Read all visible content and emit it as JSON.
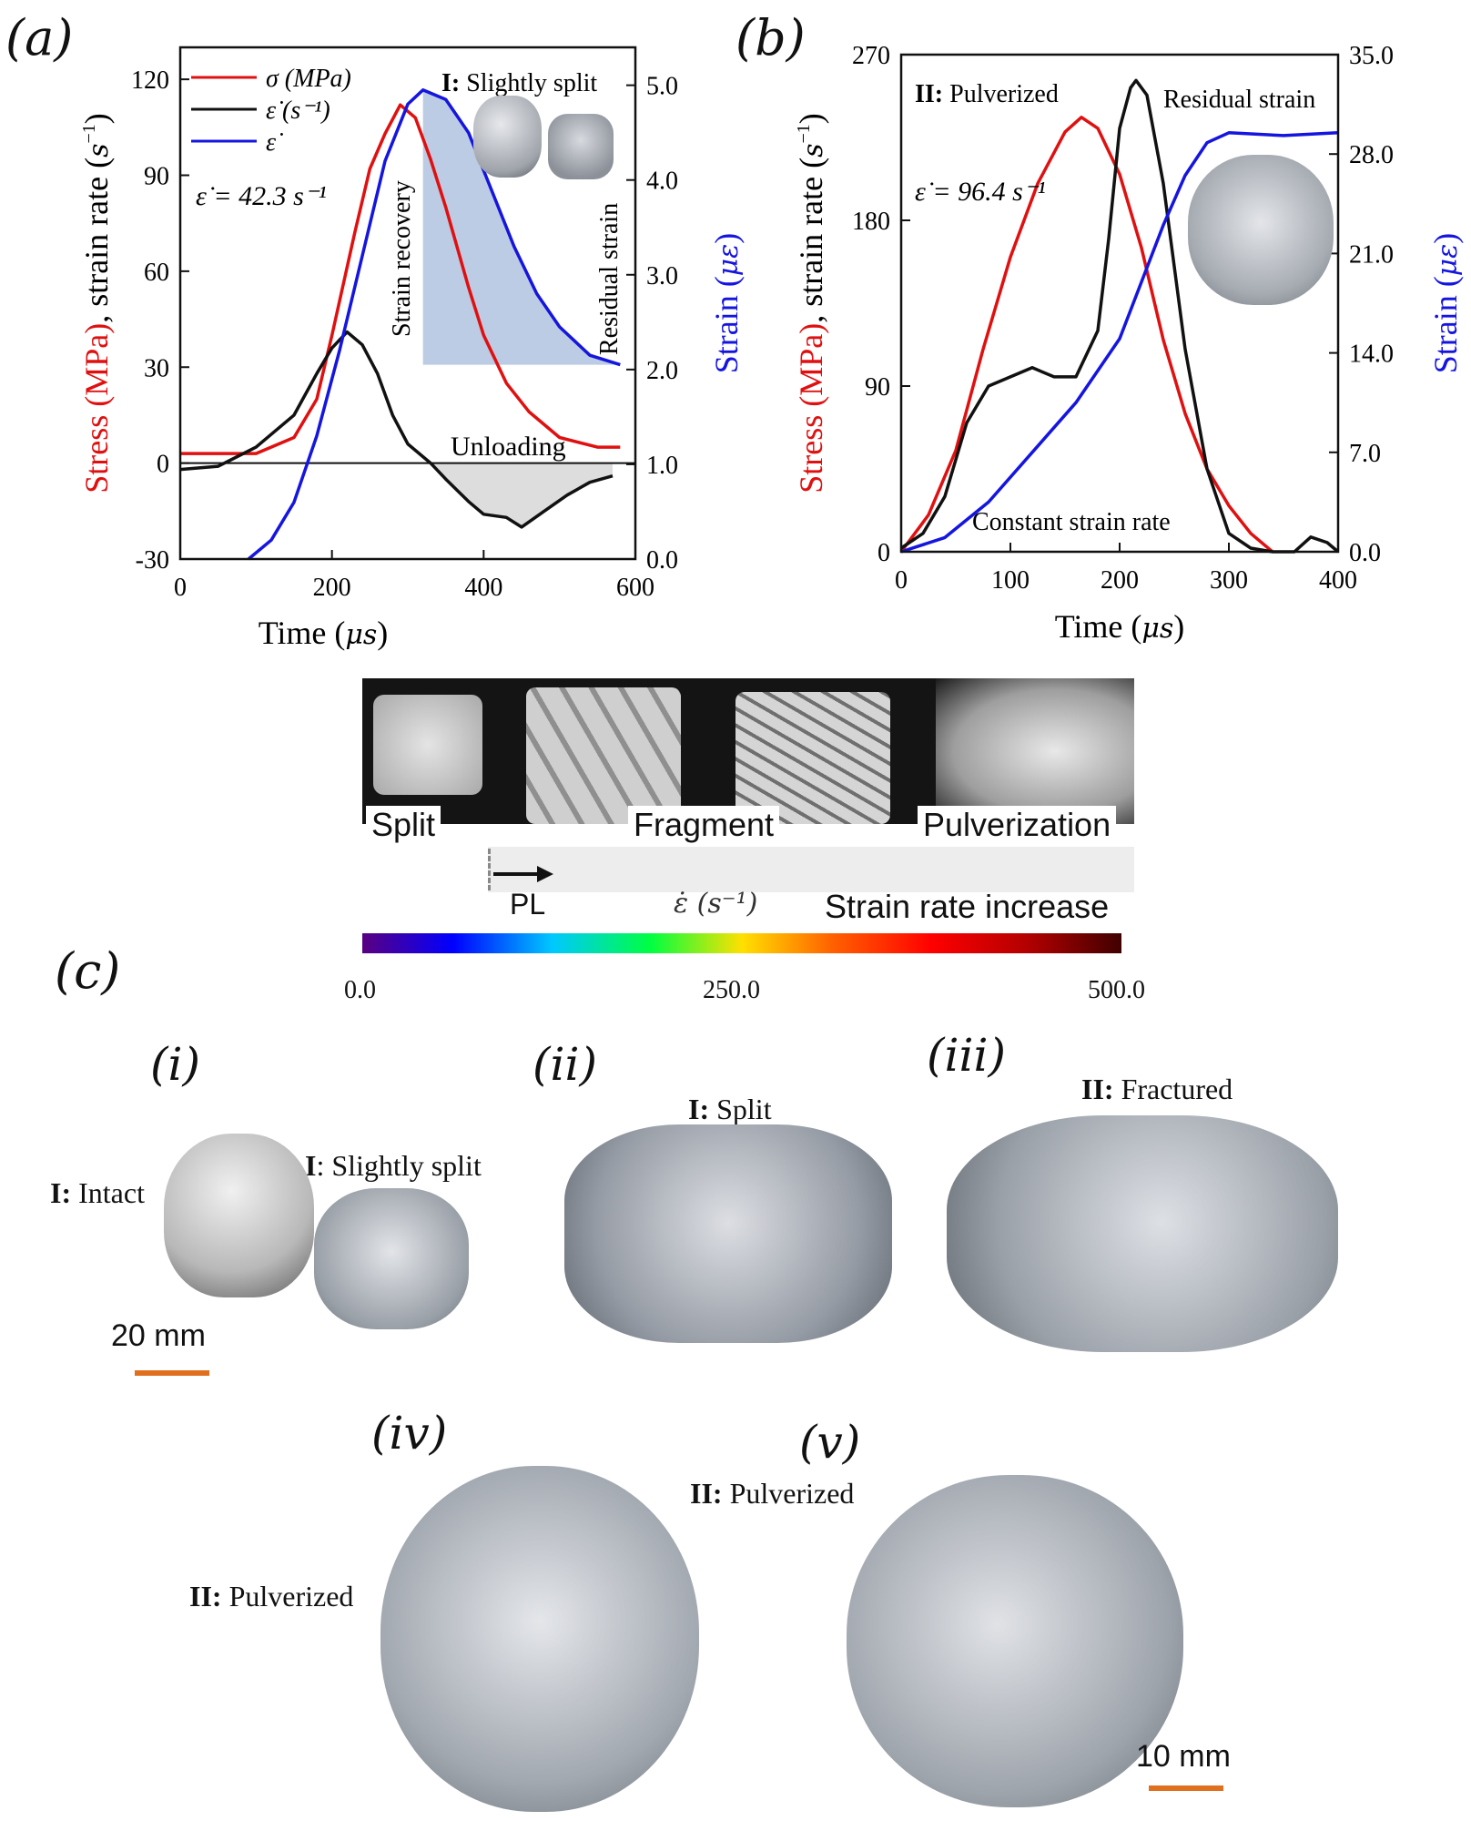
{
  "panel_a": {
    "label": "(a)",
    "legend": [
      {
        "text": "σ  (MPa)",
        "color": "#e01010"
      },
      {
        "text": "ε̇  (s⁻¹)",
        "color": "#111111"
      },
      {
        "text": "ε̇",
        "color": "#1515e0"
      }
    ],
    "annotation_rate": "ε̇ = 42.3  s⁻¹",
    "annotation_state_prefix": "I:",
    "annotation_state": "Slightly  split",
    "annotation_recovery": "Strain recovery",
    "annotation_residual": "Residual strain",
    "annotation_unloading": "Unloading"
  },
  "panel_b": {
    "label": "(b)",
    "annotation_state_prefix": "II:",
    "annotation_state": "Pulverized",
    "annotation_rate": "ε̇ = 96.4  s⁻¹",
    "annotation_residual": "Residual strain",
    "annotation_constant": "Constant strain rate"
  },
  "chart_data": [
    {
      "type": "line",
      "xlabel": "Time (μs)",
      "ylabel_left": "Stress (MPa), strain rate (s⁻¹)",
      "ylabel_right": "Strain (με)",
      "xlim": [
        0,
        600
      ],
      "ylim_left": [
        -30,
        130
      ],
      "ylim_right": [
        0,
        5.4
      ],
      "x_ticks": [
        "0",
        "200",
        "400",
        "600"
      ],
      "y_ticks_left": [
        "-30",
        "0",
        "30",
        "60",
        "90",
        "120"
      ],
      "y_ticks_right": [
        "0.0",
        "1.0",
        "2.0",
        "3.0",
        "4.0",
        "5.0"
      ],
      "series": [
        {
          "name": "σ (MPa)",
          "axis": "left",
          "color": "#e01010",
          "x": [
            0,
            50,
            100,
            150,
            180,
            200,
            230,
            250,
            270,
            290,
            310,
            330,
            350,
            380,
            400,
            430,
            460,
            500,
            550,
            580
          ],
          "y": [
            3,
            3,
            3,
            8,
            20,
            40,
            72,
            92,
            103,
            112,
            108,
            95,
            80,
            55,
            40,
            25,
            16,
            8,
            5,
            5
          ]
        },
        {
          "name": "ε̇ (s⁻¹)",
          "axis": "left",
          "color": "#111111",
          "x": [
            0,
            50,
            100,
            150,
            180,
            200,
            220,
            240,
            260,
            280,
            300,
            330,
            350,
            380,
            400,
            430,
            450,
            480,
            510,
            540,
            570
          ],
          "y": [
            -2,
            -1,
            5,
            15,
            28,
            36,
            41,
            37,
            28,
            15,
            6,
            0,
            -5,
            -12,
            -16,
            -17,
            -20,
            -15,
            -10,
            -6,
            -4
          ]
        },
        {
          "name": "ε̇",
          "axis": "right",
          "color": "#1515e0",
          "x": [
            90,
            120,
            150,
            180,
            210,
            240,
            270,
            300,
            320,
            350,
            380,
            410,
            440,
            470,
            500,
            540,
            580
          ],
          "y": [
            0,
            0.2,
            0.6,
            1.3,
            2.2,
            3.2,
            4.2,
            4.8,
            4.95,
            4.85,
            4.5,
            3.9,
            3.3,
            2.8,
            2.45,
            2.15,
            2.05
          ]
        }
      ]
    },
    {
      "type": "line",
      "xlabel": "Time (μs)",
      "ylabel_left": "Stress (MPa), strain rate (s⁻¹)",
      "ylabel_right": "Strain (με)",
      "xlim": [
        0,
        400
      ],
      "ylim_left": [
        0,
        270
      ],
      "ylim_right": [
        0,
        35
      ],
      "x_ticks": [
        "0",
        "100",
        "200",
        "300",
        "400"
      ],
      "y_ticks_left": [
        "0",
        "90",
        "180",
        "270"
      ],
      "y_ticks_right": [
        "0.0",
        "7.0",
        "14.0",
        "21.0",
        "28.0",
        "35.0"
      ],
      "series": [
        {
          "name": "Stress",
          "axis": "left",
          "color": "#e01010",
          "x": [
            0,
            25,
            50,
            75,
            100,
            125,
            150,
            165,
            180,
            200,
            220,
            240,
            260,
            280,
            300,
            320,
            340
          ],
          "y": [
            0,
            20,
            55,
            110,
            160,
            200,
            228,
            236,
            230,
            205,
            165,
            115,
            75,
            45,
            25,
            10,
            0
          ]
        },
        {
          "name": "Strain rate",
          "axis": "left",
          "color": "#111111",
          "x": [
            0,
            20,
            40,
            60,
            80,
            100,
            120,
            140,
            160,
            180,
            190,
            200,
            210,
            215,
            225,
            240,
            260,
            280,
            300,
            320,
            340,
            360,
            375,
            390,
            400
          ],
          "y": [
            2,
            10,
            30,
            70,
            90,
            95,
            100,
            95,
            95,
            120,
            170,
            230,
            252,
            256,
            248,
            200,
            110,
            45,
            10,
            2,
            0,
            0,
            8,
            5,
            0
          ]
        },
        {
          "name": "Strain",
          "axis": "right",
          "color": "#1515e0",
          "x": [
            0,
            40,
            80,
            120,
            160,
            200,
            220,
            240,
            260,
            280,
            300,
            350,
            400
          ],
          "y": [
            0,
            1,
            3.5,
            7,
            10.5,
            15,
            19,
            23,
            26.5,
            28.8,
            29.5,
            29.3,
            29.5
          ]
        }
      ]
    }
  ],
  "panel_c": {
    "label": "(c)",
    "strip_labels": [
      "Split",
      "Fragment",
      "Pulverization"
    ],
    "pl_label": "PL",
    "rate_symbol": "ε̇  (s⁻¹)",
    "increase_label": "Strain rate increase",
    "colorbar_ticks": [
      "0.0",
      "250.0",
      "500.0"
    ]
  },
  "samples": {
    "i": {
      "label": "(i)",
      "cap1_prefix": "I:",
      "cap1": "Intact",
      "cap2_prefix": "I",
      "cap2": ": Slightly  split",
      "scale": "20 mm"
    },
    "ii": {
      "label": "(ii)",
      "cap_prefix": "I:",
      "cap": "Split"
    },
    "iii": {
      "label": "(iii)",
      "cap_prefix": "II:",
      "cap": "Fractured"
    },
    "iv": {
      "label": "(iv)",
      "cap_prefix": "II:",
      "cap": "Pulverized"
    },
    "v": {
      "label": "(v)",
      "cap_prefix": "II:",
      "cap": "Pulverized",
      "scale": "10 mm"
    }
  }
}
